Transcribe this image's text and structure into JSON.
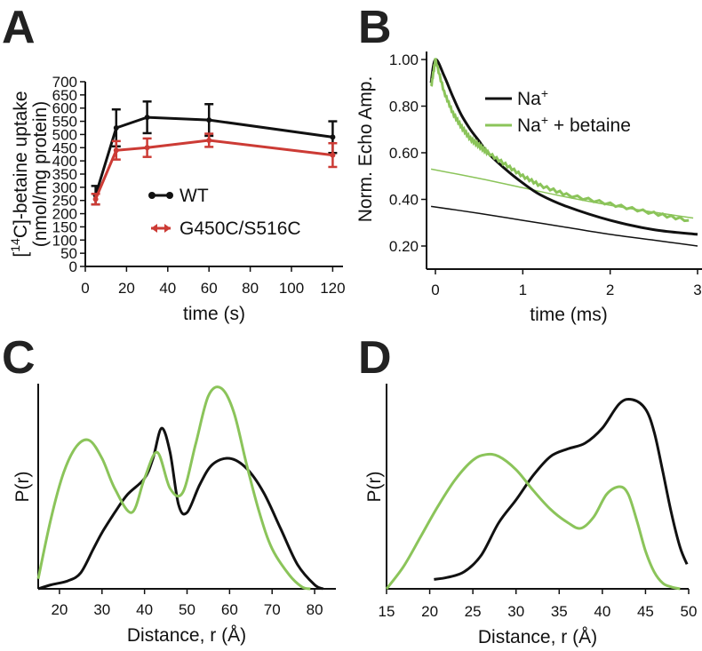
{
  "colors": {
    "black": "#111111",
    "red": "#cc3b35",
    "green": "#8bc45a"
  },
  "chart_data": [
    {
      "panel": "A",
      "type": "line",
      "xlabel": "time (s)",
      "ylabel": "[14C]-betaine uptake (nmol/mg protein)",
      "ylabel_parts": {
        "pre": "[",
        "sup": "14",
        "post": "C]-betaine uptake",
        "line2": "(nmol/mg protein)"
      },
      "xlim": [
        0,
        125
      ],
      "ylim": [
        0,
        700
      ],
      "xticks": [
        0,
        20,
        40,
        60,
        80,
        100,
        120
      ],
      "yticks": [
        0,
        50,
        100,
        150,
        200,
        250,
        300,
        350,
        400,
        450,
        500,
        550,
        600,
        650,
        700
      ],
      "series": [
        {
          "name": "WT",
          "color": "#111111",
          "x": [
            5,
            15,
            30,
            60,
            120
          ],
          "y": [
            270,
            525,
            565,
            555,
            490
          ],
          "err": [
            35,
            70,
            60,
            60,
            60
          ]
        },
        {
          "name": "G450C/S516C",
          "color": "#cc3b35",
          "x": [
            5,
            15,
            30,
            60,
            120
          ],
          "y": [
            255,
            440,
            450,
            478,
            422
          ],
          "err": [
            20,
            35,
            35,
            25,
            45
          ]
        }
      ]
    },
    {
      "panel": "B",
      "type": "line",
      "xlabel": "time (ms)",
      "ylabel": "Norm. Echo Amp.",
      "xlim": [
        -0.1,
        3.0
      ],
      "ylim": [
        0.16,
        1.02
      ],
      "xticks": [
        0,
        1,
        2,
        3
      ],
      "yticks": [
        "1.00",
        "0.80",
        "0.60",
        "0.40",
        "0.20"
      ],
      "legend": [
        {
          "label_main": "Na",
          "label_sup": "+",
          "label_rest": "",
          "color": "#111111"
        },
        {
          "label_main": "Na",
          "label_sup": "+",
          "label_rest": " + betaine",
          "color": "#8bc45a"
        }
      ],
      "series": [
        {
          "name": "Na+",
          "color": "#111111",
          "x": [
            -0.05,
            0,
            0.1,
            0.2,
            0.3,
            0.4,
            0.5,
            0.6,
            0.8,
            1.0,
            1.2,
            1.5,
            2.0,
            2.5,
            3.0
          ],
          "y": [
            0.9,
            1.0,
            0.93,
            0.84,
            0.76,
            0.7,
            0.65,
            0.6,
            0.53,
            0.47,
            0.42,
            0.37,
            0.31,
            0.27,
            0.25
          ]
        },
        {
          "name": "Na+ + betaine",
          "color": "#8bc45a",
          "x": [
            -0.05,
            0,
            0.1,
            0.2,
            0.3,
            0.4,
            0.5,
            0.6,
            0.8,
            1.0,
            1.2,
            1.5,
            2.0,
            2.5,
            2.9
          ],
          "y": [
            0.88,
            1.0,
            0.86,
            0.77,
            0.71,
            0.66,
            0.63,
            0.6,
            0.55,
            0.5,
            0.46,
            0.42,
            0.38,
            0.34,
            0.31
          ]
        },
        {
          "name": "Na+ background",
          "color": "#111111",
          "x": [
            -0.05,
            0.5,
            1.0,
            1.5,
            2.0,
            2.5,
            3.0
          ],
          "y": [
            0.37,
            0.34,
            0.31,
            0.28,
            0.25,
            0.225,
            0.2
          ]
        },
        {
          "name": "Na+ + betaine background",
          "color": "#8bc45a",
          "x": [
            -0.05,
            0.5,
            1.0,
            1.5,
            2.0,
            2.5,
            2.95
          ],
          "y": [
            0.53,
            0.49,
            0.45,
            0.41,
            0.375,
            0.345,
            0.32
          ]
        }
      ]
    },
    {
      "panel": "C",
      "type": "line",
      "xlabel": "Distance, r (Å)",
      "ylabel": "P(r)",
      "xlim": [
        15,
        85
      ],
      "ylim": [
        0,
        1
      ],
      "xticks": [
        20,
        30,
        40,
        50,
        60,
        70,
        80
      ],
      "series": [
        {
          "name": "black",
          "color": "#111111",
          "x": [
            15,
            18,
            22,
            25,
            28,
            30,
            33,
            36,
            40,
            42,
            44,
            46,
            48,
            50,
            53,
            56,
            60,
            64,
            68,
            72,
            76,
            80,
            82
          ],
          "y": [
            0.0,
            0.02,
            0.04,
            0.08,
            0.2,
            0.28,
            0.38,
            0.47,
            0.55,
            0.65,
            0.8,
            0.68,
            0.42,
            0.38,
            0.52,
            0.62,
            0.65,
            0.6,
            0.48,
            0.3,
            0.12,
            0.02,
            0.0
          ]
        },
        {
          "name": "green",
          "color": "#8bc45a",
          "x": [
            15,
            18,
            21,
            24,
            27,
            30,
            33,
            37,
            40,
            43,
            46,
            49,
            52,
            55,
            58,
            61,
            64,
            67,
            70,
            74,
            77,
            79
          ],
          "y": [
            0.05,
            0.35,
            0.58,
            0.71,
            0.74,
            0.65,
            0.5,
            0.38,
            0.55,
            0.68,
            0.5,
            0.48,
            0.72,
            0.96,
            1.0,
            0.88,
            0.62,
            0.38,
            0.2,
            0.07,
            0.01,
            0.0
          ]
        }
      ]
    },
    {
      "panel": "D",
      "type": "line",
      "xlabel": "Distance, r (Å)",
      "ylabel": "P(r)",
      "xlim": [
        15,
        50
      ],
      "ylim": [
        0,
        1
      ],
      "xticks": [
        15,
        20,
        25,
        30,
        35,
        40,
        45,
        50
      ],
      "series": [
        {
          "name": "black",
          "color": "#111111",
          "x": [
            20.5,
            22,
            24,
            26,
            28,
            30,
            32,
            34,
            36,
            38,
            40,
            42,
            43.5,
            45,
            46,
            47,
            48,
            49,
            49.8
          ],
          "y": [
            0.05,
            0.06,
            0.09,
            0.18,
            0.35,
            0.47,
            0.6,
            0.7,
            0.74,
            0.77,
            0.85,
            0.98,
            1.0,
            0.95,
            0.83,
            0.62,
            0.4,
            0.22,
            0.13
          ]
        },
        {
          "name": "green",
          "color": "#8bc45a",
          "x": [
            15,
            17,
            19,
            21,
            23,
            25,
            26.5,
            28,
            30,
            32,
            34,
            36,
            37.5,
            39,
            40.5,
            42,
            43,
            44,
            45,
            46,
            47,
            48,
            49
          ],
          "y": [
            0.0,
            0.12,
            0.28,
            0.44,
            0.58,
            0.68,
            0.71,
            0.7,
            0.63,
            0.52,
            0.42,
            0.35,
            0.32,
            0.38,
            0.5,
            0.54,
            0.5,
            0.36,
            0.2,
            0.09,
            0.03,
            0.01,
            0.0
          ]
        }
      ]
    }
  ]
}
